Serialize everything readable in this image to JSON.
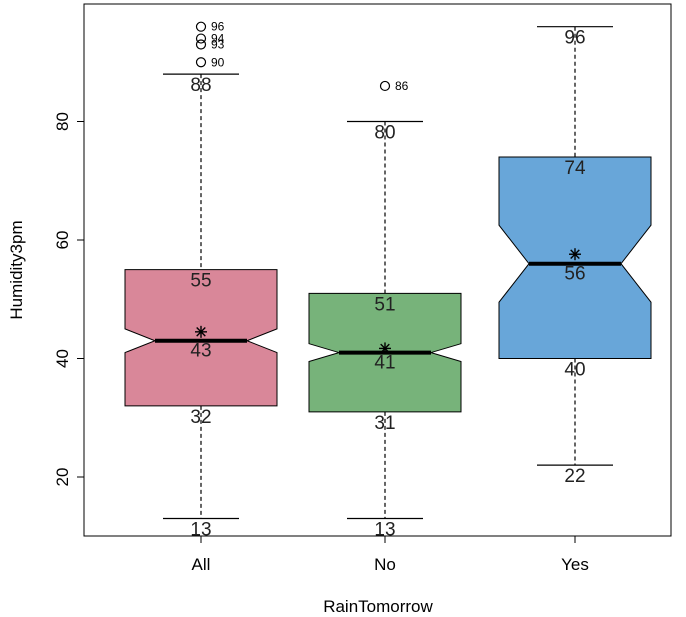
{
  "chart_data": {
    "type": "boxplot",
    "xlabel": "RainTomorrow",
    "ylabel": "Humidity3pm",
    "ylim": [
      10,
      99
    ],
    "y_ticks": [
      20,
      40,
      60,
      80
    ],
    "categories": [
      "All",
      "No",
      "Yes"
    ],
    "boxes": [
      {
        "category": "All",
        "color": "#d98799",
        "whisker_low": 13,
        "q1": 32,
        "median": 43,
        "q3": 55,
        "whisker_high": 88,
        "mean": 44.5,
        "notch_low": 41,
        "notch_high": 45,
        "outliers": [
          90,
          93,
          94,
          96
        ],
        "labels": {
          "whisker_low": "13",
          "q1": "32",
          "median": "43",
          "q3": "55",
          "whisker_high": "88"
        }
      },
      {
        "category": "No",
        "color": "#77b37a",
        "whisker_low": 13,
        "q1": 31,
        "median": 41,
        "q3": 51,
        "whisker_high": 80,
        "mean": 41.7,
        "notch_low": 39.5,
        "notch_high": 42.5,
        "outliers": [
          86
        ],
        "labels": {
          "whisker_low": "13",
          "q1": "31",
          "median": "41",
          "q3": "51",
          "whisker_high": "80"
        }
      },
      {
        "category": "Yes",
        "color": "#68a6d9",
        "whisker_low": 22,
        "q1": 40,
        "median": 56,
        "q3": 74,
        "whisker_high": 96,
        "mean": 57.6,
        "notch_low": 49.5,
        "notch_high": 62.5,
        "outliers": [],
        "labels": {
          "whisker_low": "22",
          "q1": "40",
          "median": "56",
          "q3": "74",
          "whisker_high": "96"
        }
      }
    ]
  }
}
